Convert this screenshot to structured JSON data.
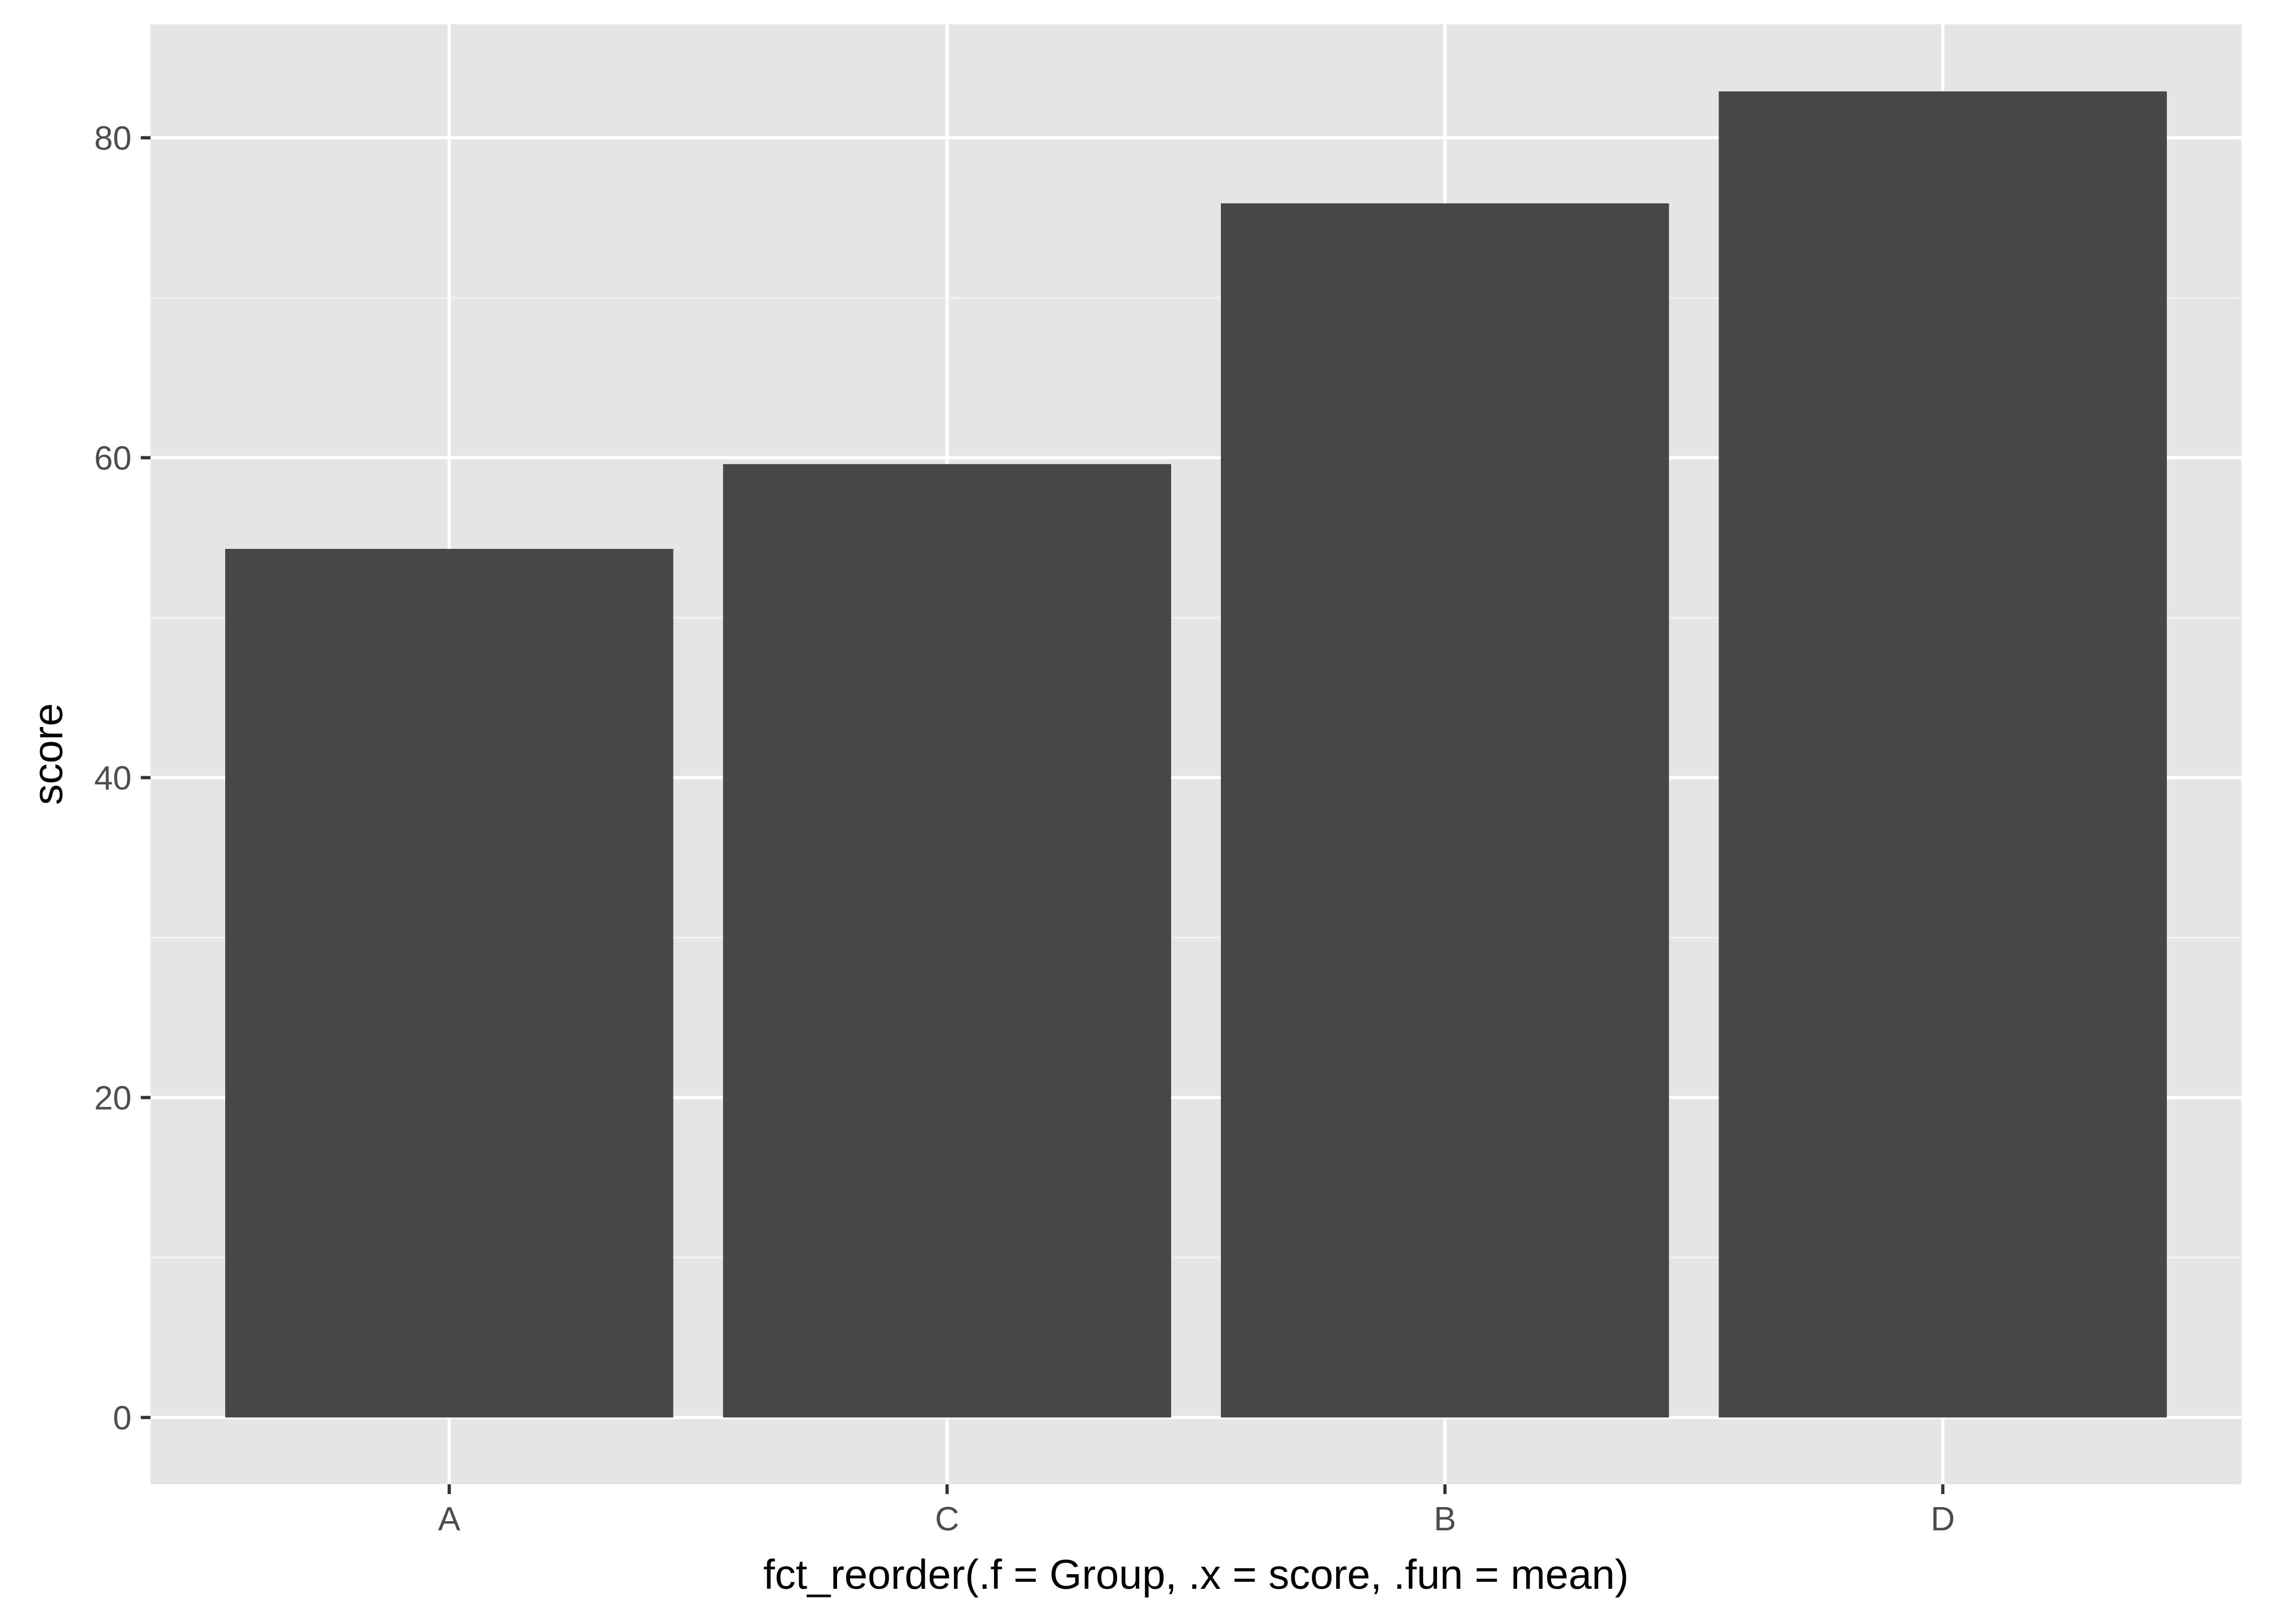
{
  "colors": {
    "panel_background": "#e5e5e5",
    "grid_major": "#ffffff",
    "grid_minor": "#f2f2f2",
    "bar_fill": "#474747",
    "tick_mark": "#333333",
    "tick_label": "#4d4d4d",
    "axis_title": "#000000"
  },
  "chart_data": {
    "type": "bar",
    "categories": [
      "A",
      "C",
      "B",
      "D"
    ],
    "values": [
      54.3,
      59.6,
      75.9,
      82.9
    ],
    "xlabel": "fct_reorder(.f = Group, .x = score, .fun = mean)",
    "ylabel": "score",
    "ylim": [
      -4.15,
      87.05
    ],
    "yticks": [
      0,
      20,
      40,
      60,
      80
    ],
    "ytick_labels": [
      "0",
      "20",
      "40",
      "60",
      "80"
    ],
    "grid": true,
    "legend": "none"
  }
}
